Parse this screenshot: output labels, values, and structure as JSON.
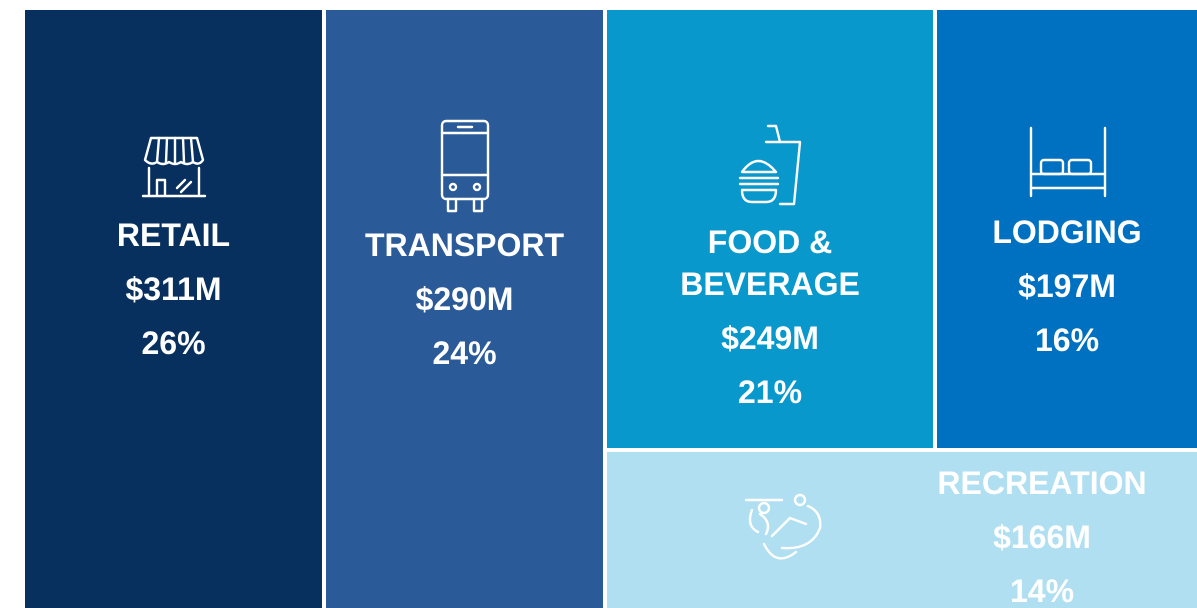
{
  "tiles": [
    {
      "label": "RETAIL",
      "amount": "$311M",
      "share": "26%"
    },
    {
      "label": "TRANSPORT",
      "amount": "$290M",
      "share": "24%"
    },
    {
      "label": "FOOD & BEVERAGE",
      "amount": "$249M",
      "share": "21%"
    },
    {
      "label": "LODGING",
      "amount": "$197M",
      "share": "16%"
    },
    {
      "label": "RECREATION",
      "amount": "$166M",
      "share": "14%"
    }
  ]
}
